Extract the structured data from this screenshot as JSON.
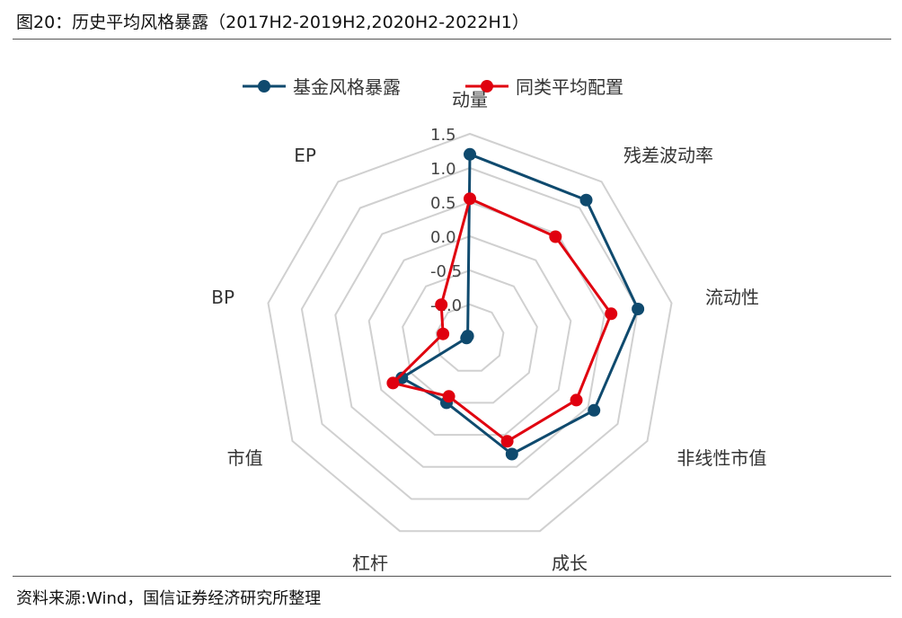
{
  "figure": {
    "title": "图20：历史平均风格暴露（2017H2-2019H2,2020H2-2022H1）",
    "source": "资料来源:Wind，国信证券经济研究所整理"
  },
  "colors": {
    "series_fund": "#0f4a6e",
    "series_peer": "#e0000f",
    "grid": "#d0d0d0",
    "text": "#333333"
  },
  "chart_data": {
    "type": "radar",
    "axes": [
      "动量",
      "残差波动率",
      "流动性",
      "非线性市值",
      "成长",
      "杠杆",
      "市值",
      "BP",
      "EP"
    ],
    "rlim": [
      -1.5,
      1.5
    ],
    "ticks": [
      -1.0,
      -0.5,
      0.0,
      0.5,
      1.0,
      1.5
    ],
    "tick_labels": [
      "-1.0",
      "-0.5",
      "0.0",
      "0.5",
      "1.0",
      "1.5"
    ],
    "grid": true,
    "legend_position": "top-center",
    "series": [
      {
        "name": "基金风格暴露",
        "color": "#0f4a6e",
        "values": [
          1.2,
          1.15,
          1.0,
          0.6,
          0.3,
          -0.5,
          -0.35,
          -1.45,
          -1.45
        ]
      },
      {
        "name": "同类平均配置",
        "color": "#e0000f",
        "values": [
          0.55,
          0.45,
          0.6,
          0.3,
          0.1,
          -0.6,
          -0.2,
          -1.1,
          -0.85
        ]
      }
    ]
  }
}
